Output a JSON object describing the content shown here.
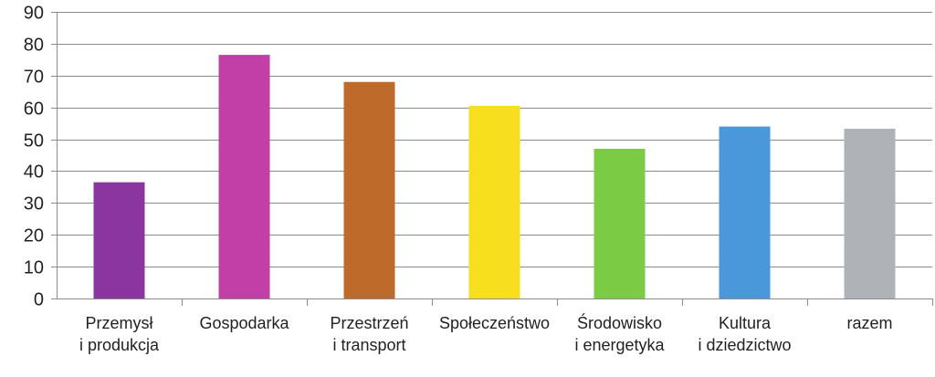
{
  "chart_data": {
    "type": "bar",
    "title": "",
    "xlabel": "",
    "ylabel": "",
    "ylim": [
      0,
      90
    ],
    "yticks": [
      0,
      10,
      20,
      30,
      40,
      50,
      60,
      70,
      80,
      90
    ],
    "grid": true,
    "legend": "none",
    "categories": [
      [
        "Przemysł",
        "i produkcja"
      ],
      [
        "Gospodarka"
      ],
      [
        "Przestrzeń",
        "i transport"
      ],
      [
        "Społeczeństwo"
      ],
      [
        "Środowisko",
        "i energetyka"
      ],
      [
        "Kultura",
        "i dziedzictwo"
      ],
      [
        "razem"
      ]
    ],
    "values": [
      36.5,
      76.5,
      68,
      60.5,
      47,
      54,
      53.3
    ],
    "colors": [
      "#8b35a0",
      "#c23fa7",
      "#bd6a2a",
      "#f7de1e",
      "#7ccb45",
      "#4a97d9",
      "#afb2b6"
    ]
  }
}
